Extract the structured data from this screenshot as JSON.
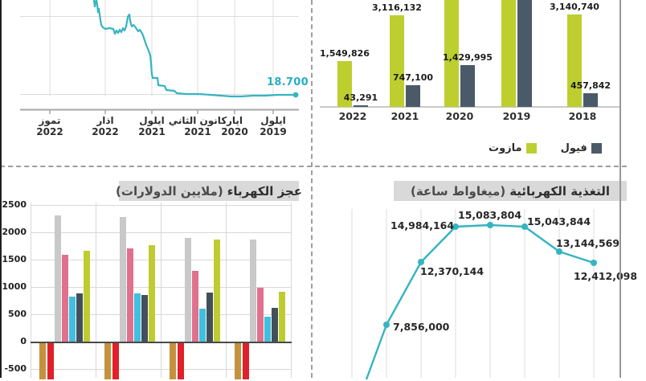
{
  "colors": {
    "teal": "#35b4c2",
    "mazut_green": "#bdcf2f",
    "fuel_slate": "#4b5a68",
    "bar_tan": "#c4923e",
    "bar_red": "#e0202a",
    "bar_gray": "#c9c9c9",
    "bar_pink": "#e0718e",
    "bar_cyan": "#41bfdf",
    "bar_dark": "#42505c",
    "bar_yellow": "#bfcc31",
    "title_bg": "#d9d9d9"
  },
  "chart_data": [
    {
      "id": "currency-line",
      "type": "line",
      "position": "top-left",
      "time_direction": "right-to-left",
      "end_point_label": "18.700",
      "end_point_value": 18700,
      "truncated_top": true,
      "x_ticks": [
        {
          "month": "تموز",
          "year": "2022"
        },
        {
          "month": "اذار",
          "year": "2022"
        },
        {
          "month": "ايلول",
          "year": "2021"
        },
        {
          "month": "كانون الثاني",
          "year": "2021"
        },
        {
          "month": "ايار",
          "year": "2020"
        },
        {
          "month": "ايلول",
          "year": "2019"
        }
      ]
    },
    {
      "id": "fuel-imports-bars",
      "type": "bar",
      "position": "top-right",
      "categories": [
        "2022",
        "2021",
        "2020",
        "2019",
        "2018"
      ],
      "series": [
        {
          "name": "مازوت",
          "color": "#bdcf2f",
          "values": [
            1549826,
            3116132,
            null,
            null,
            3140740
          ],
          "labels": [
            "1,549,826",
            "3,116,132",
            null,
            null,
            "3,140,740"
          ],
          "cut_off_top": [
            false,
            false,
            true,
            true,
            false
          ]
        },
        {
          "name": "فيول",
          "color": "#4b5a68",
          "values": [
            43291,
            747100,
            1429995,
            null,
            457842
          ],
          "labels": [
            "43,291",
            "747,100",
            "1,429,995",
            null,
            "457,842"
          ],
          "cut_off_top": [
            false,
            false,
            false,
            true,
            false
          ]
        }
      ],
      "legend": [
        {
          "label": "مازوت",
          "color": "#bdcf2f"
        },
        {
          "label": "فيول",
          "color": "#4b5a68"
        }
      ]
    },
    {
      "id": "electricity-deficit-bars",
      "type": "bar",
      "position": "bottom-left",
      "title_main": "عجز الكهرباء",
      "title_sub": "(ملايين الدولارات)",
      "ylabel_ticks": [
        "2500",
        "2000",
        "1500",
        "1000",
        "500",
        "0",
        "-500"
      ],
      "ylim_visible": [
        -660,
        2500
      ],
      "grid": true,
      "series_colors": [
        "#c4923e",
        "#e0202a",
        "#c9c9c9",
        "#e0718e",
        "#41bfdf",
        "#42505c",
        "#bfcc31"
      ],
      "groups": [
        {
          "values": [
            null,
            null,
            2310,
            1590,
            825,
            880,
            1660
          ]
        },
        {
          "values": [
            null,
            null,
            2280,
            1705,
            880,
            855,
            1765
          ]
        },
        {
          "values": [
            null,
            null,
            1900,
            1295,
            600,
            895,
            1870
          ]
        },
        {
          "values": [
            null,
            null,
            1870,
            985,
            455,
            620,
            910
          ]
        }
      ],
      "negative_bars_cut_off_bottom": true,
      "x_labels_visible": false
    },
    {
      "id": "electricity-feed-line",
      "type": "line",
      "position": "bottom-right",
      "title_main": "التغذية الكهربائية",
      "title_sub": "(ميغاواط ساعة)",
      "values": [
        7856000,
        12370144,
        14984164,
        15083804,
        15043844,
        13144569,
        12412098
      ],
      "labels": [
        "7,856,000",
        "12,370,144",
        "14,984,164",
        "15,083,804",
        "15,043,844",
        "13,144,569",
        "12,412,098"
      ],
      "grid": "vertical",
      "line_enters_from_below_left": true,
      "x_labels_visible": false
    }
  ]
}
